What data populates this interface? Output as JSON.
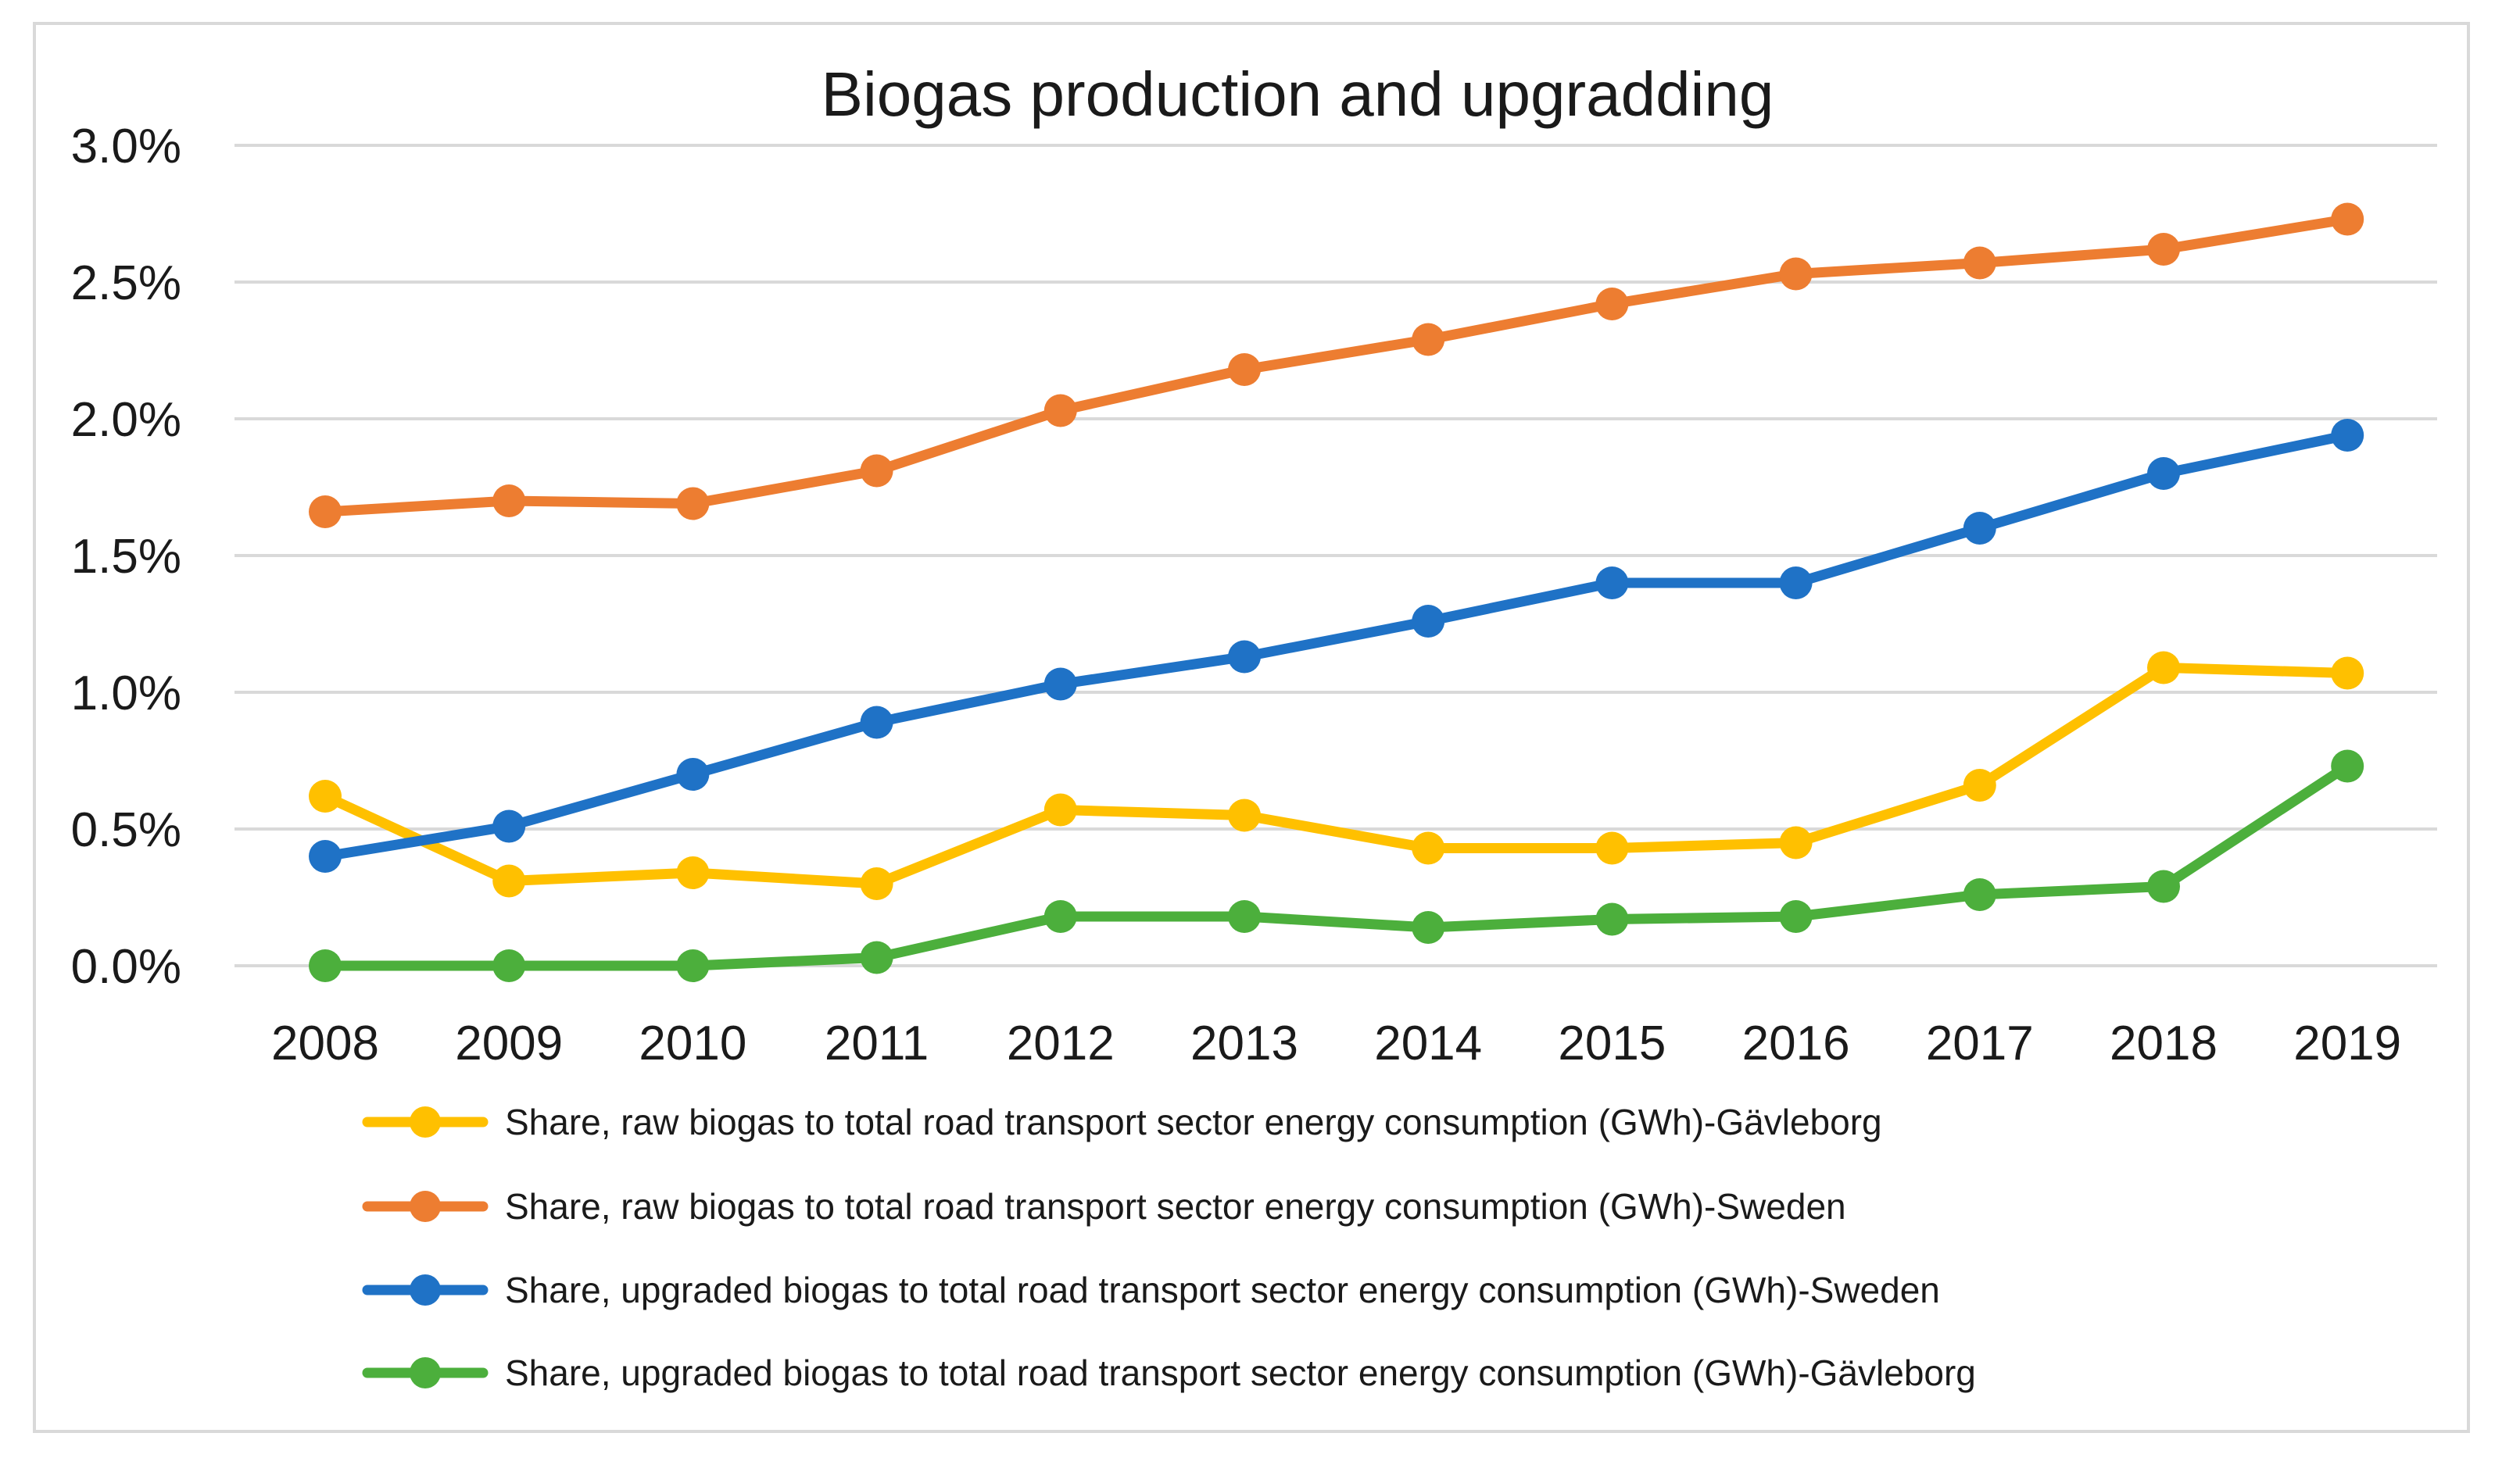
{
  "chart_data": {
    "type": "line",
    "title": "Biogas production and upgradding",
    "xlabel": "",
    "ylabel": "",
    "ylim": [
      0,
      0.03
    ],
    "yticks": [
      "0.0%",
      "0.5%",
      "1.0%",
      "1.5%",
      "2.0%",
      "2.5%",
      "3.0%"
    ],
    "categories": [
      "2008",
      "2009",
      "2010",
      "2011",
      "2012",
      "2013",
      "2014",
      "2015",
      "2016",
      "2017",
      "2018",
      "2019"
    ],
    "grid": true,
    "legend_position": "bottom",
    "series": [
      {
        "name": "Share, raw biogas to total road transport sector energy consumption (GWh)-Gävleborg",
        "color": "#FFC000",
        "values": [
          0.0062,
          0.0031,
          0.0034,
          0.003,
          0.0057,
          0.0055,
          0.0043,
          0.0043,
          0.0045,
          0.0066,
          0.0109,
          0.0107
        ]
      },
      {
        "name": "Share, raw biogas to total road transport sector energy consumption (GWh)-Sweden",
        "color": "#ED7D31",
        "values": [
          0.0166,
          0.017,
          0.0169,
          0.0181,
          0.0203,
          0.0218,
          0.0229,
          0.0242,
          0.0253,
          0.0257,
          0.0262,
          0.0273
        ]
      },
      {
        "name": "Share, upgraded biogas to total road transport sector energy consumption (GWh)-Sweden",
        "color": "#1F72C6",
        "values": [
          0.004,
          0.0051,
          0.007,
          0.0089,
          0.0103,
          0.0113,
          0.0126,
          0.014,
          0.014,
          0.016,
          0.018,
          0.0194
        ]
      },
      {
        "name": "Share, upgraded biogas to total road transport sector energy consumption (GWh)-Gävleborg",
        "color": "#4CAF3C",
        "values": [
          0.0,
          0.0,
          0.0,
          0.0003,
          0.0018,
          0.0018,
          0.0014,
          0.0017,
          0.0018,
          0.0026,
          0.0029,
          0.0073
        ]
      }
    ]
  }
}
